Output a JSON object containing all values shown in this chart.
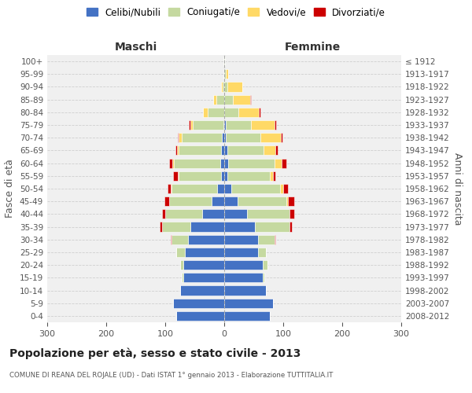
{
  "age_groups": [
    "100+",
    "95-99",
    "90-94",
    "85-89",
    "80-84",
    "75-79",
    "70-74",
    "65-69",
    "60-64",
    "55-59",
    "50-54",
    "45-49",
    "40-44",
    "35-39",
    "30-34",
    "25-29",
    "20-24",
    "15-19",
    "10-14",
    "5-9",
    "0-4"
  ],
  "birth_years": [
    "≤ 1912",
    "1913-1917",
    "1918-1922",
    "1923-1927",
    "1928-1932",
    "1933-1937",
    "1938-1942",
    "1943-1947",
    "1948-1952",
    "1953-1957",
    "1958-1962",
    "1963-1967",
    "1968-1972",
    "1973-1977",
    "1978-1982",
    "1983-1987",
    "1988-1992",
    "1993-1997",
    "1998-2002",
    "2003-2007",
    "2008-2012"
  ],
  "males_celibi": [
    0,
    0,
    0,
    0,
    0,
    2,
    4,
    5,
    7,
    5,
    12,
    22,
    38,
    58,
    62,
    67,
    70,
    70,
    75,
    87,
    82
  ],
  "males_coniugati": [
    1,
    1,
    3,
    14,
    28,
    52,
    68,
    72,
    78,
    72,
    78,
    72,
    62,
    48,
    28,
    14,
    5,
    2,
    0,
    0,
    0
  ],
  "males_vedovi": [
    0,
    0,
    2,
    5,
    8,
    4,
    5,
    3,
    3,
    2,
    1,
    0,
    0,
    0,
    0,
    0,
    0,
    0,
    0,
    0,
    0
  ],
  "males_divorziati": [
    0,
    0,
    0,
    0,
    0,
    2,
    2,
    3,
    5,
    8,
    5,
    8,
    5,
    3,
    1,
    0,
    0,
    0,
    0,
    0,
    0
  ],
  "females_nubili": [
    0,
    0,
    0,
    0,
    0,
    2,
    3,
    5,
    7,
    5,
    12,
    22,
    38,
    52,
    57,
    57,
    65,
    65,
    70,
    82,
    77
  ],
  "females_coniugate": [
    1,
    2,
    5,
    14,
    24,
    43,
    58,
    62,
    78,
    72,
    83,
    83,
    72,
    58,
    28,
    14,
    8,
    3,
    0,
    0,
    0
  ],
  "females_vedove": [
    0,
    5,
    25,
    30,
    35,
    40,
    35,
    20,
    12,
    5,
    5,
    3,
    0,
    0,
    0,
    0,
    0,
    0,
    0,
    0,
    0
  ],
  "females_divorziate": [
    0,
    0,
    1,
    1,
    2,
    3,
    3,
    3,
    8,
    5,
    8,
    10,
    8,
    4,
    2,
    0,
    0,
    0,
    0,
    0,
    0
  ],
  "colors": {
    "celibi": "#4472C4",
    "coniugati": "#C5D9A0",
    "vedovi": "#FFD966",
    "divorziati": "#CC0000"
  },
  "xlim": 300,
  "title": "Popolazione per età, sesso e stato civile - 2013",
  "subtitle": "COMUNE DI REANA DEL ROJALE (UD) - Dati ISTAT 1° gennaio 2013 - Elaborazione TUTTITALIA.IT",
  "ylabel_left": "Fasce di età",
  "ylabel_right": "Anni di nascita",
  "xlabel_left": "Maschi",
  "xlabel_right": "Femmine",
  "legend_labels": [
    "Celibi/Nubili",
    "Coniugati/e",
    "Vedovi/e",
    "Divorziati/e"
  ],
  "bg_color": "#f0f0f0",
  "grid_color": "#cccccc"
}
